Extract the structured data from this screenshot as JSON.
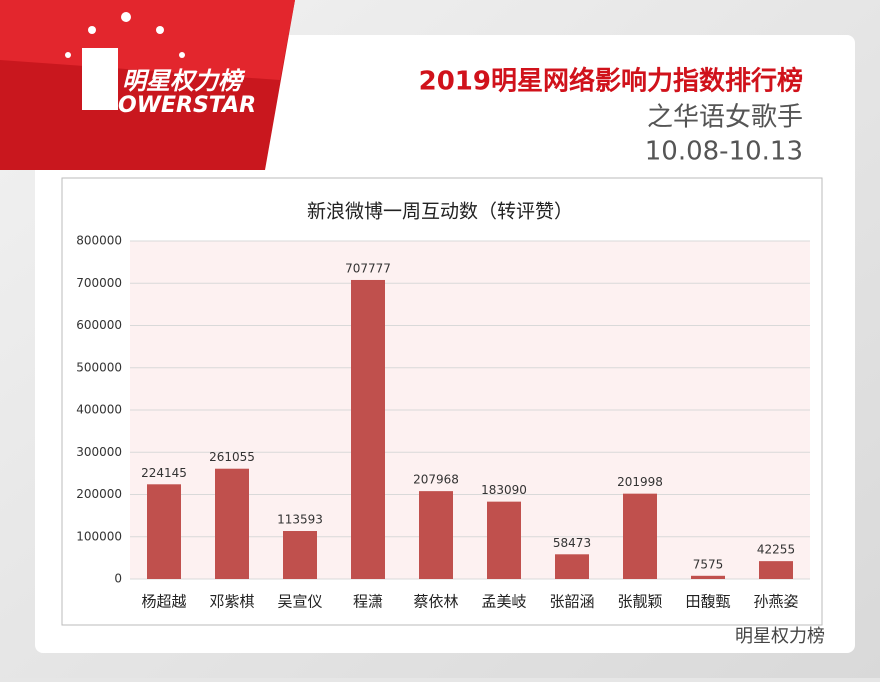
{
  "header": {
    "logo_cn": "明星权力榜",
    "logo_en": "OWERSTAR",
    "title": "2019明星网络影响力指数排行榜",
    "subtitle": "之华语女歌手",
    "date": "10.08-10.13"
  },
  "chart_data": {
    "type": "bar",
    "title": "新浪微博一周互动数（转评赞）",
    "categories": [
      "杨超越",
      "邓紫棋",
      "吴宣仪",
      "程潇",
      "蔡依林",
      "孟美岐",
      "张韶涵",
      "张靓颖",
      "田馥甄",
      "孙燕姿"
    ],
    "values": [
      224145,
      261055,
      113593,
      707777,
      207968,
      183090,
      58473,
      201998,
      7575,
      42255
    ],
    "color": "#c0504d",
    "ylim": [
      0,
      800000
    ],
    "yticks": [
      0,
      100000,
      200000,
      300000,
      400000,
      500000,
      600000,
      700000,
      800000
    ],
    "grid": true
  },
  "footer": {
    "watermark": "明星权力榜"
  }
}
